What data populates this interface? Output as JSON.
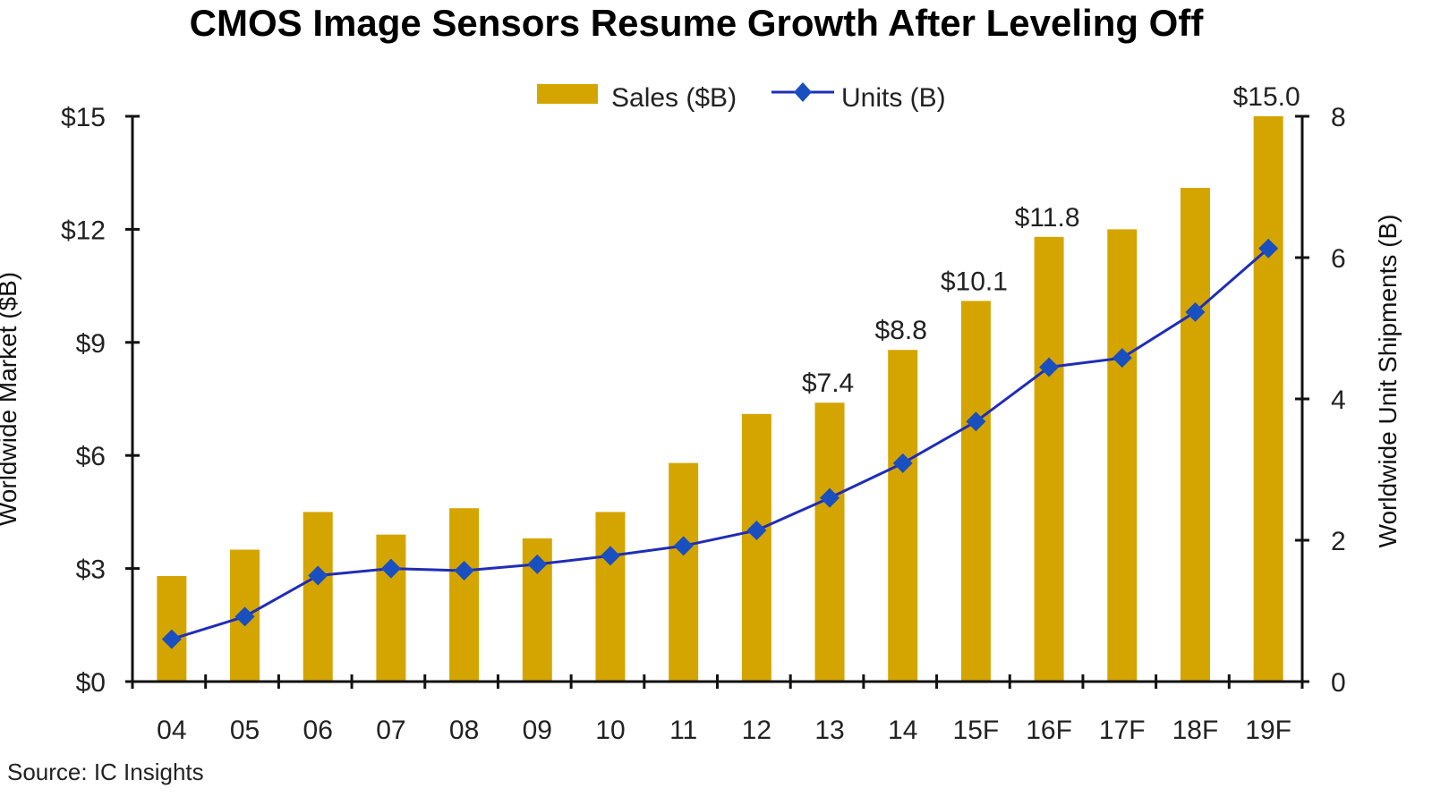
{
  "chart_data": {
    "type": "bar",
    "title": "CMOS Image Sensors Resume Growth After Leveling Off",
    "source": "Source: IC Insights",
    "categories": [
      "04",
      "05",
      "06",
      "07",
      "08",
      "09",
      "10",
      "11",
      "12",
      "13",
      "14",
      "15F",
      "16F",
      "17F",
      "18F",
      "19F"
    ],
    "series": [
      {
        "name": "Sales ($B)",
        "type": "bar",
        "axis": "left",
        "color": "#D4A500",
        "values": [
          2.8,
          3.5,
          4.5,
          3.9,
          4.6,
          3.8,
          4.5,
          5.8,
          7.1,
          7.4,
          8.8,
          10.1,
          11.8,
          12.0,
          13.1,
          15.0
        ]
      },
      {
        "name": "Units (B)",
        "type": "line",
        "axis": "right",
        "color": "#1F2DB8",
        "marker_color": "#1A4FC0",
        "marker": "diamond",
        "values": [
          0.6,
          0.92,
          1.5,
          1.6,
          1.57,
          1.66,
          1.78,
          1.92,
          2.14,
          2.6,
          3.09,
          3.68,
          4.45,
          4.58,
          5.23,
          6.13
        ]
      }
    ],
    "data_labels": [
      {
        "category": "13",
        "text": "$7.4"
      },
      {
        "category": "14",
        "text": "$8.8"
      },
      {
        "category": "15F",
        "text": "$10.1"
      },
      {
        "category": "16F",
        "text": "$11.8"
      },
      {
        "category": "19F",
        "text": "$15.0"
      }
    ],
    "ylabel": "Worldwide Market ($B)",
    "ylabel_right": "Worldwide Unit Shipments (B)",
    "xlabel": "",
    "ylim": [
      0,
      15
    ],
    "ylim_right": [
      0,
      8
    ],
    "yticks": [
      0,
      3,
      6,
      9,
      12,
      15
    ],
    "ytick_labels": [
      "$0",
      "$3",
      "$6",
      "$9",
      "$12",
      "$15"
    ],
    "yticks_right": [
      0,
      2,
      4,
      6,
      8
    ],
    "ytick_labels_right": [
      "0",
      "2",
      "4",
      "6",
      "8"
    ],
    "grid": false,
    "legend": {
      "position": "top-center",
      "entries": [
        "Sales ($B)",
        "Units (B)"
      ]
    }
  }
}
